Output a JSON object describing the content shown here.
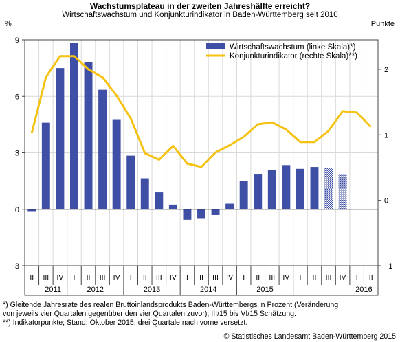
{
  "chart_data": {
    "type": "bar+line",
    "title": "Wachstumsplateau in der zweiten Jahreshälfte erreicht?",
    "subtitle": "Wirtschaftswachstum und Konjunkturindikator in Baden-Württemberg seit 2010",
    "left_axis_label": "%",
    "right_axis_label": "Punkte",
    "left_ticks": [
      "9",
      "6",
      "3",
      "0",
      "−3"
    ],
    "right_ticks": [
      "2",
      "1",
      "0",
      "−1"
    ],
    "left_ylim": [
      -3,
      9
    ],
    "right_ylim": [
      -1,
      2.45
    ],
    "quarter_labels": [
      "II",
      "III",
      "IV",
      "I",
      "II",
      "III",
      "IV",
      "I",
      "II",
      "III",
      "IV",
      "I",
      "II",
      "III",
      "IV",
      "I",
      "II",
      "III",
      "IV",
      "I",
      "II",
      "III",
      "IV",
      "I",
      "II"
    ],
    "year_labels": [
      "2011",
      "2012",
      "2013",
      "2014",
      "2015",
      "2016"
    ],
    "series": [
      {
        "name": "Wirtschaftswachstum (linke Skala)*)",
        "type": "bar",
        "axis": "left",
        "color": "#3f4fa6",
        "values": [
          -0.1,
          4.6,
          7.5,
          8.85,
          7.8,
          6.35,
          4.75,
          2.85,
          1.65,
          0.9,
          0.25,
          -0.55,
          -0.5,
          -0.3,
          0.3,
          1.5,
          1.85,
          2.1,
          2.35,
          2.15,
          2.25,
          2.2,
          1.85,
          null,
          null
        ],
        "estimated_from_index": 21
      },
      {
        "name": "Konjunkturindikator (rechte Skala)**)",
        "type": "line",
        "axis": "right",
        "color": "#f5c211",
        "values": [
          1.03,
          1.88,
          2.2,
          2.2,
          2.0,
          1.88,
          1.6,
          1.25,
          0.72,
          0.62,
          0.83,
          0.56,
          0.51,
          0.73,
          0.84,
          0.97,
          1.16,
          1.19,
          1.08,
          0.89,
          0.89,
          1.06,
          1.36,
          1.34,
          1.12
        ]
      }
    ],
    "grid": true,
    "legend_position": "top-right"
  },
  "footnotes": [
    "*) Gleitende Jahresrate des realen Bruttoinlandsprodukts Baden-Württembergs in Prozent (Veränderung",
    "von jeweils vier Quartalen gegenüber den vier Quartalen zuvor); III/15 bis VI/15 Schätzung.",
    "**) Indikatorpunkte; Stand: Oktober 2015; drei Quartale nach vorne versetzt."
  ],
  "source": "© Statistisches Landesamt Baden-Württemberg 2015"
}
